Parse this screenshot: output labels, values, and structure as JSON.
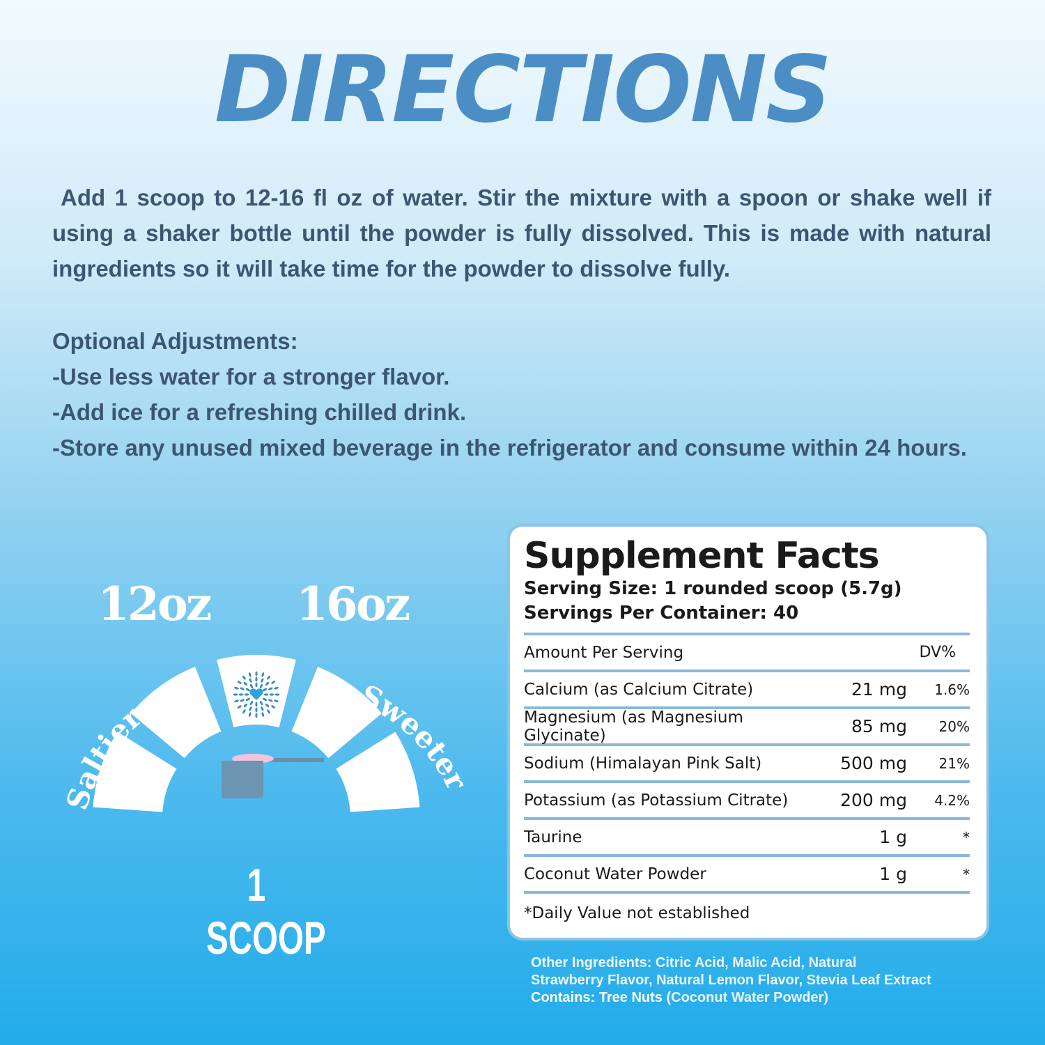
{
  "title": "DIRECTIONS",
  "instructions": "Add 1 scoop to 12-16 fl oz of water. Stir the mixture with a spoon or shake well if using a shaker bottle until the powder is fully dissolved. This is made with natural ingredients so it will take time for the powder to dissolve fully.",
  "optional": {
    "heading": "Optional Adjustments:",
    "items": [
      "-Use less water for a stronger flavor.",
      "-Add ice for a refreshing chilled drink.",
      "-Store any unused mixed beverage in the refrigerator and consume within 24 hours."
    ]
  },
  "gauge": {
    "left_oz": "12oz",
    "right_oz": "16oz",
    "left_label": "Saltier",
    "right_label": "Sweeter",
    "scoop_label": "1 SCOOP",
    "selected_segment": 3,
    "segments": 5
  },
  "facts": {
    "title": "Supplement Facts",
    "serving_size": "Serving Size: 1 rounded scoop (5.7g)",
    "servings": "Servings Per Container: 40",
    "header_amount": "Amount Per Serving",
    "header_dv": "DV%",
    "rows": [
      {
        "name": "Calcium (as Calcium Citrate)",
        "amount": "21 mg",
        "dv": "1.6%"
      },
      {
        "name": "Magnesium (as Magnesium Glycinate)",
        "amount": "85 mg",
        "dv": "20%"
      },
      {
        "name": "Sodium (Himalayan Pink Salt)",
        "amount": "500 mg",
        "dv": "21%"
      },
      {
        "name": "Potassium (as Potassium Citrate)",
        "amount": "200 mg",
        "dv": "4.2%"
      },
      {
        "name": "Taurine",
        "amount": "1 g",
        "dv": "*"
      },
      {
        "name": "Coconut Water Powder",
        "amount": "1 g",
        "dv": "*"
      }
    ],
    "footnote": "*Daily Value not established"
  },
  "other": {
    "line1": "Other Ingredients: Citric Acid, Malic Acid, Natural",
    "line2": "Strawberry Flavor, Natural Lemon Flavor, Stevia Leaf Extract",
    "contains_label": "Contains: Tree Nuts",
    "contains_detail": " (Coconut Water Powder)"
  },
  "colors": {
    "title": "#4b8ec6",
    "text": "#3c5672",
    "rule": "#8ab8da"
  }
}
